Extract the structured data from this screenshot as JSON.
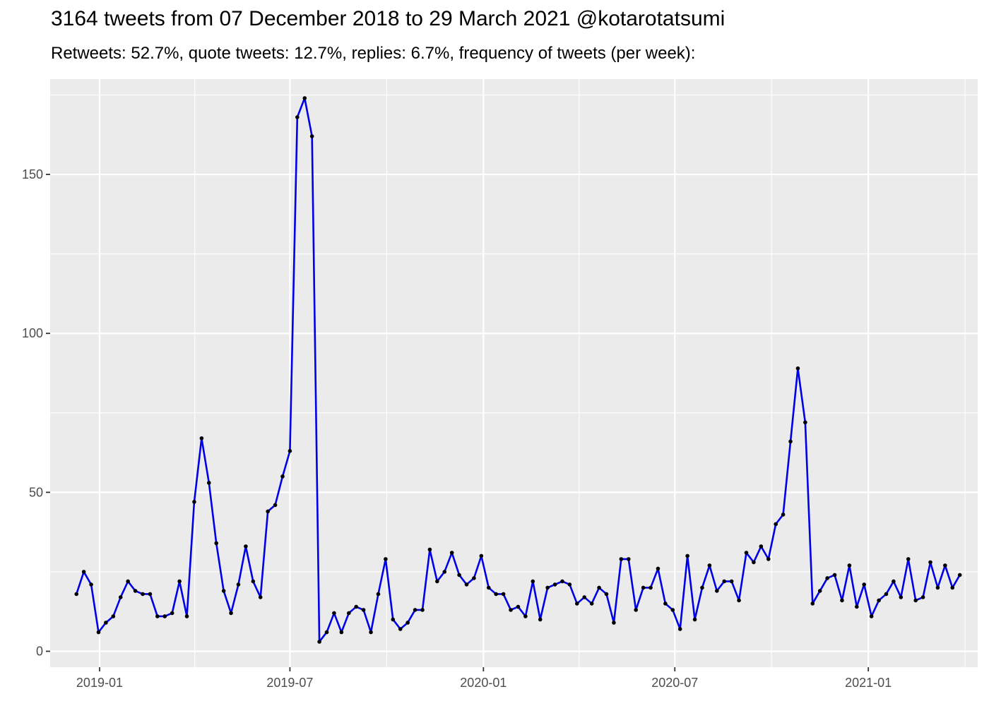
{
  "chart_data": {
    "type": "line",
    "title": "3164 tweets from 07 December 2018 to 29 March 2021 @kotarotatsumi",
    "subtitle": "Retweets: 52.7%, quote tweets: 12.7%, replies: 6.7%, frequency of tweets (per week):",
    "xlabel": "",
    "ylabel": "",
    "x_start": "2018-12-10",
    "x_step_days": 7,
    "xlim": [
      "2018-11-15",
      "2021-04-15"
    ],
    "ylim": [
      -5,
      180
    ],
    "y_ticks": [
      0,
      50,
      100,
      150
    ],
    "x_ticks": [
      {
        "date": "2019-01-01",
        "label": "2019-01"
      },
      {
        "date": "2019-07-01",
        "label": "2019-07"
      },
      {
        "date": "2020-01-01",
        "label": "2020-01"
      },
      {
        "date": "2020-07-01",
        "label": "2020-07"
      },
      {
        "date": "2021-01-01",
        "label": "2021-01"
      }
    ],
    "grid": true,
    "line_color": "#0000e6",
    "point_color": "#000000",
    "background": "#ebebeb",
    "values": [
      18,
      25,
      21,
      6,
      9,
      11,
      17,
      22,
      19,
      18,
      18,
      11,
      11,
      12,
      22,
      11,
      47,
      67,
      53,
      34,
      19,
      12,
      21,
      33,
      22,
      17,
      44,
      46,
      55,
      63,
      168,
      174,
      162,
      3,
      6,
      12,
      6,
      12,
      14,
      13,
      6,
      18,
      29,
      10,
      7,
      9,
      13,
      13,
      32,
      22,
      25,
      31,
      24,
      21,
      23,
      30,
      20,
      18,
      18,
      13,
      14,
      11,
      22,
      10,
      20,
      21,
      22,
      21,
      15,
      17,
      15,
      20,
      18,
      9,
      29,
      29,
      13,
      20,
      20,
      26,
      15,
      13,
      7,
      30,
      10,
      20,
      27,
      19,
      22,
      22,
      16,
      31,
      28,
      33,
      29,
      40,
      43,
      66,
      89,
      72,
      15,
      19,
      23,
      24,
      16,
      27,
      14,
      21,
      11,
      16,
      18,
      22,
      17,
      29,
      16,
      17,
      28,
      20,
      27,
      20,
      24
    ]
  }
}
